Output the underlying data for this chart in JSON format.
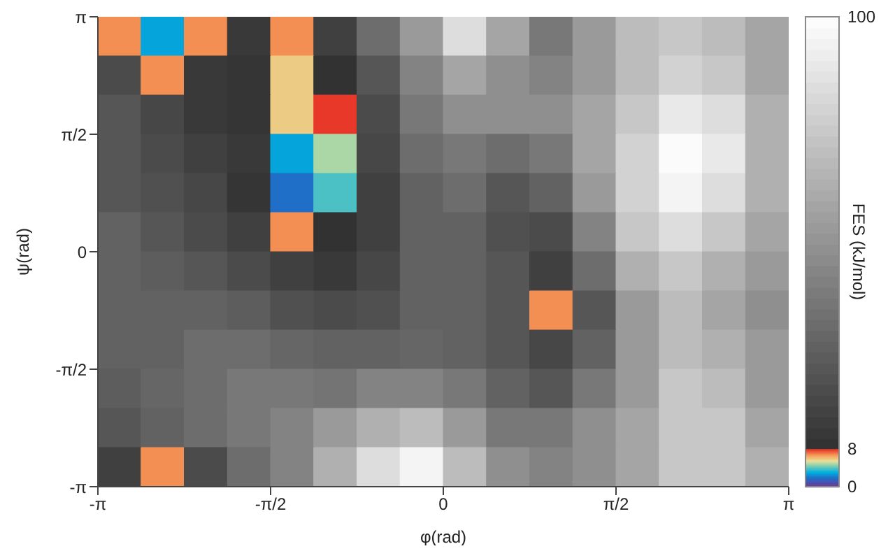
{
  "chart_data": {
    "type": "heatmap",
    "xlabel": "φ(rad)",
    "ylabel": "ψ(rad)",
    "clabel": "FES (kJ/mol)",
    "xlim": [
      -3.1416,
      3.1416
    ],
    "ylim": [
      -3.1416,
      3.1416
    ],
    "xticks": [
      {
        "value": -3.1416,
        "label": "-π"
      },
      {
        "value": -1.5708,
        "label": "-π/2"
      },
      {
        "value": 0,
        "label": "0"
      },
      {
        "value": 1.5708,
        "label": "π/2"
      },
      {
        "value": 3.1416,
        "label": "π"
      }
    ],
    "yticks": [
      {
        "value": -3.1416,
        "label": "-π"
      },
      {
        "value": -1.5708,
        "label": "-π/2"
      },
      {
        "value": 0,
        "label": "0"
      },
      {
        "value": 1.5708,
        "label": "π/2"
      },
      {
        "value": 3.1416,
        "label": "π"
      }
    ],
    "clim": [
      0,
      100
    ],
    "cticks": [
      0,
      8,
      100
    ],
    "cells": [
      [
        7,
        3,
        7,
        12,
        7,
        15,
        35,
        55,
        85,
        60,
        40,
        55,
        70,
        75,
        70,
        60
      ],
      [
        20,
        7,
        12,
        10,
        6,
        9,
        25,
        45,
        60,
        50,
        45,
        55,
        70,
        80,
        75,
        60
      ],
      [
        25,
        18,
        12,
        10,
        6,
        8,
        20,
        40,
        50,
        50,
        50,
        60,
        75,
        90,
        85,
        65
      ],
      [
        25,
        20,
        15,
        12,
        3,
        5,
        18,
        35,
        40,
        35,
        40,
        60,
        80,
        98,
        90,
        65
      ],
      [
        25,
        22,
        18,
        10,
        2,
        4,
        15,
        30,
        35,
        25,
        30,
        55,
        80,
        95,
        85,
        65
      ],
      [
        30,
        25,
        20,
        15,
        7,
        9,
        15,
        30,
        30,
        22,
        20,
        45,
        75,
        85,
        75,
        60
      ],
      [
        30,
        28,
        25,
        20,
        15,
        12,
        18,
        30,
        30,
        25,
        15,
        35,
        65,
        75,
        65,
        55
      ],
      [
        30,
        30,
        30,
        28,
        22,
        20,
        22,
        30,
        30,
        25,
        7,
        25,
        55,
        70,
        60,
        50
      ],
      [
        30,
        30,
        35,
        35,
        32,
        30,
        30,
        32,
        30,
        25,
        18,
        30,
        55,
        70,
        65,
        55
      ],
      [
        28,
        32,
        35,
        40,
        40,
        38,
        45,
        45,
        40,
        30,
        25,
        40,
        55,
        75,
        70,
        55
      ],
      [
        25,
        30,
        35,
        40,
        45,
        55,
        65,
        70,
        55,
        40,
        40,
        50,
        60,
        75,
        75,
        60
      ],
      [
        15,
        7,
        20,
        35,
        45,
        65,
        85,
        95,
        70,
        50,
        45,
        50,
        60,
        75,
        75,
        65
      ]
    ]
  }
}
